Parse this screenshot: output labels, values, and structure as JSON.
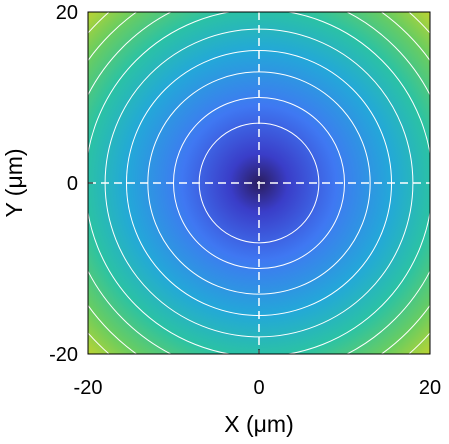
{
  "chart_data": {
    "type": "heatmap",
    "xlabel": "X (μm)",
    "ylabel": "Y (μm)",
    "xlim": [
      -20,
      20
    ],
    "ylim": [
      -20,
      20
    ],
    "x_ticks": [
      -20,
      0,
      20
    ],
    "y_ticks": [
      -20,
      0,
      20
    ],
    "x_tick_labels": [
      "-20",
      "0",
      "20"
    ],
    "y_tick_labels": [
      "-20",
      "0",
      "20"
    ],
    "grid": false,
    "field": "radially symmetric paraboloid centered at (0, 0); minimum at center, increasing with radius",
    "colormap": "parula-like (dark navy at minimum → blue → cyan-green → yellow-green at corners)",
    "colormap_stops": [
      "#2a1d5e",
      "#3a3dc8",
      "#3f78f2",
      "#23a8d8",
      "#2bc2a4",
      "#6ccd5e",
      "#b8d334"
    ],
    "contour_radii": [
      7,
      10,
      13,
      15.5,
      18,
      20.3,
      22.5,
      24.6,
      26.6,
      28.5
    ],
    "contour_color": "#ffffff",
    "crosshair": {
      "x": 0,
      "y": 0,
      "style": "dashed",
      "color": "#ffffff"
    }
  }
}
